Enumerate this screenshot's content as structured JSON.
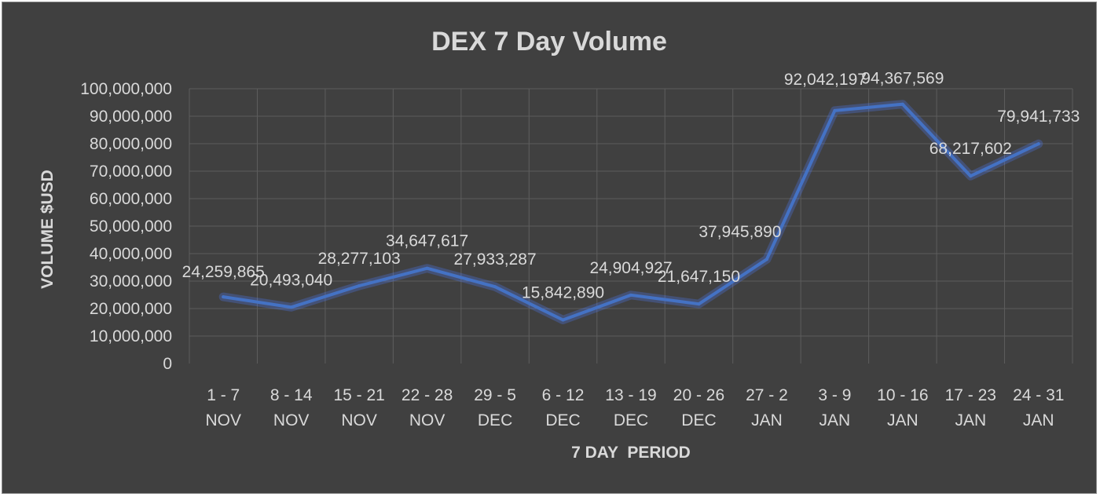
{
  "chart_data": {
    "type": "line",
    "title": "DEX 7 Day Volume",
    "xlabel": "7 DAY  PERIOD",
    "ylabel": "VOLUME $USD",
    "categories": [
      [
        "1 - 7",
        "NOV"
      ],
      [
        "8 - 14",
        "NOV"
      ],
      [
        "15 - 21",
        "NOV"
      ],
      [
        "22  - 28",
        "NOV"
      ],
      [
        "29 - 5",
        "DEC"
      ],
      [
        "6 -  12",
        "DEC"
      ],
      [
        "13 - 19",
        "DEC"
      ],
      [
        "20 - 26",
        "DEC"
      ],
      [
        "27 - 2",
        "JAN"
      ],
      [
        "3 - 9",
        "JAN"
      ],
      [
        "10 - 16",
        "JAN"
      ],
      [
        "17 - 23",
        "JAN"
      ],
      [
        "24 - 31",
        "JAN"
      ]
    ],
    "series": [
      {
        "values": [
          24259865,
          20493040,
          28277103,
          34647617,
          27933287,
          15842890,
          24904927,
          21647150,
          37945890,
          92042197,
          94367569,
          68217602,
          79941733
        ],
        "data_labels": [
          "24,259,865",
          "20,493,040",
          "28,277,103",
          "34,647,617",
          "27,933,287",
          "15,842,890",
          "24,904,927",
          "21,647,150",
          "37,945,890",
          "92,042,197",
          "94,367,569",
          "68,217,602",
          "79,941,733"
        ],
        "color": "#4472C4"
      }
    ],
    "ylim": [
      0,
      100000000
    ],
    "yticks": [
      0,
      10000000,
      20000000,
      30000000,
      40000000,
      50000000,
      60000000,
      70000000,
      80000000,
      90000000,
      100000000
    ],
    "ytick_labels": [
      "0",
      "10,000,000",
      "20,000,000",
      "30,000,000",
      "40,000,000",
      "50,000,000",
      "60,000,000",
      "70,000,000",
      "80,000,000",
      "90,000,000",
      "100,000,000"
    ],
    "grid": true,
    "legend": "none",
    "background_color": "#404040",
    "gridline_color": "#5D5D5D",
    "text_color": "#D9D9D9"
  }
}
